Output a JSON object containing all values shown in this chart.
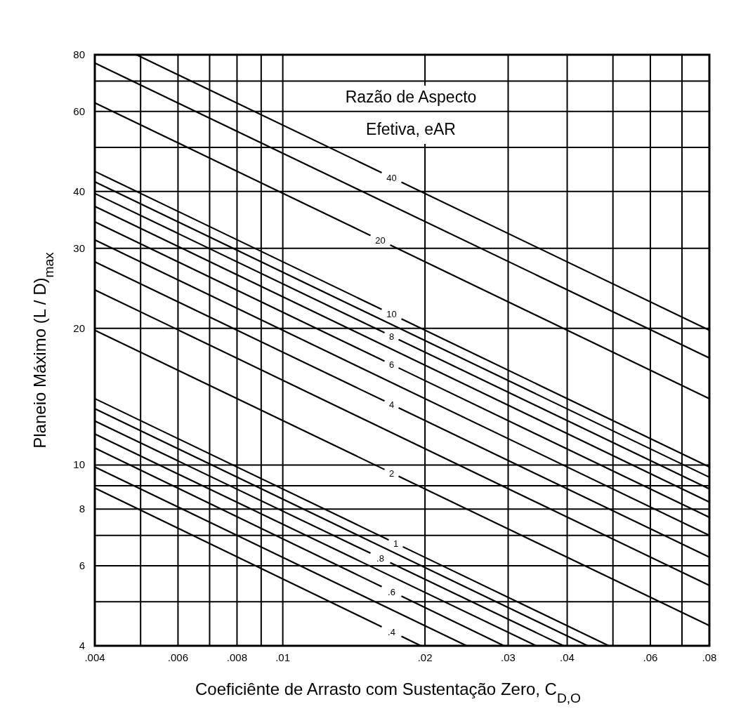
{
  "chart_data": {
    "type": "line",
    "xlabel": "Coeficiênte de Arrasto com Sustentação Zero, C$_{D,O}$",
    "ylabel": "Planeio Máximo (L / D)$_{max}$",
    "legend_title": "Razão de Aspecto Efetiva, eAR",
    "log": "xy",
    "grid": true,
    "marker": "none",
    "line_style": "solid",
    "xlim": [
      0.004,
      0.08
    ],
    "ylim": [
      4,
      80
    ],
    "xticks": [
      {
        "value": 0.004,
        "label": ".004"
      },
      {
        "value": 0.005,
        "label": null
      },
      {
        "value": 0.006,
        "label": ".006"
      },
      {
        "value": 0.007,
        "label": null
      },
      {
        "value": 0.008,
        "label": ".008"
      },
      {
        "value": 0.009,
        "label": null
      },
      {
        "value": 0.01,
        "label": ".01"
      },
      {
        "value": 0.02,
        "label": ".02"
      },
      {
        "value": 0.03,
        "label": ".03"
      },
      {
        "value": 0.04,
        "label": ".04"
      },
      {
        "value": 0.05,
        "label": null
      },
      {
        "value": 0.06,
        "label": ".06"
      },
      {
        "value": 0.07,
        "label": null
      },
      {
        "value": 0.08,
        "label": ".08"
      }
    ],
    "yticks": [
      4,
      {
        "value": 5,
        "label": null
      },
      6,
      {
        "value": 7,
        "label": null
      },
      8,
      {
        "value": 9,
        "label": null
      },
      10,
      20,
      30,
      40,
      {
        "value": 50,
        "label": null
      },
      60,
      {
        "value": 70,
        "label": null
      },
      80
    ],
    "series": [
      {
        "name": "40",
        "color": "#000000",
        "x": [
          0.0049,
          0.08
        ],
        "values": [
          80,
          19.8
        ]
      },
      {
        "color": "#000000",
        "x": [
          0.004,
          0.08
        ],
        "values": [
          76.7,
          17.2
        ]
      },
      {
        "name": "20",
        "color": "#000000",
        "x": [
          0.004,
          0.08
        ],
        "values": [
          62.7,
          14.0
        ]
      },
      {
        "name": "10",
        "color": "#000000",
        "x": [
          0.004,
          0.08
        ],
        "values": [
          44.3,
          9.9
        ]
      },
      {
        "color": "#000000",
        "x": [
          0.004,
          0.08
        ],
        "values": [
          42.0,
          9.4
        ]
      },
      {
        "name": "8",
        "color": "#000000",
        "x": [
          0.004,
          0.08
        ],
        "values": [
          39.6,
          8.86
        ]
      },
      {
        "color": "#000000",
        "x": [
          0.004,
          0.08
        ],
        "values": [
          37.1,
          8.29
        ]
      },
      {
        "name": "6",
        "color": "#000000",
        "x": [
          0.004,
          0.08
        ],
        "values": [
          34.3,
          7.67
        ]
      },
      {
        "color": "#000000",
        "x": [
          0.004,
          0.08
        ],
        "values": [
          31.3,
          7.0
        ]
      },
      {
        "name": "4",
        "color": "#000000",
        "x": [
          0.004,
          0.08
        ],
        "values": [
          28.0,
          6.27
        ]
      },
      {
        "color": "#000000",
        "x": [
          0.004,
          0.08
        ],
        "values": [
          24.3,
          5.43
        ]
      },
      {
        "name": "2",
        "color": "#000000",
        "x": [
          0.004,
          0.08
        ],
        "values": [
          19.8,
          4.43
        ]
      },
      {
        "name": "1",
        "color": "#000000",
        "x": [
          0.004,
          0.049
        ],
        "values": [
          14.0,
          4
        ]
      },
      {
        "color": "#000000",
        "x": [
          0.004,
          0.0442
        ],
        "values": [
          13.3,
          4
        ]
      },
      {
        "name": ".8",
        "color": "#000000",
        "x": [
          0.004,
          0.0393
        ],
        "values": [
          12.5,
          4
        ]
      },
      {
        "color": "#000000",
        "x": [
          0.004,
          0.0344
        ],
        "values": [
          11.7,
          4
        ]
      },
      {
        "name": ".6",
        "color": "#000000",
        "x": [
          0.004,
          0.0294
        ],
        "values": [
          10.9,
          4
        ]
      },
      {
        "color": "#000000",
        "x": [
          0.004,
          0.0245
        ],
        "values": [
          9.9,
          4
        ]
      },
      {
        "name": ".4",
        "color": "#000000",
        "x": [
          0.004,
          0.0196
        ],
        "values": [
          8.9,
          4
        ]
      }
    ]
  }
}
